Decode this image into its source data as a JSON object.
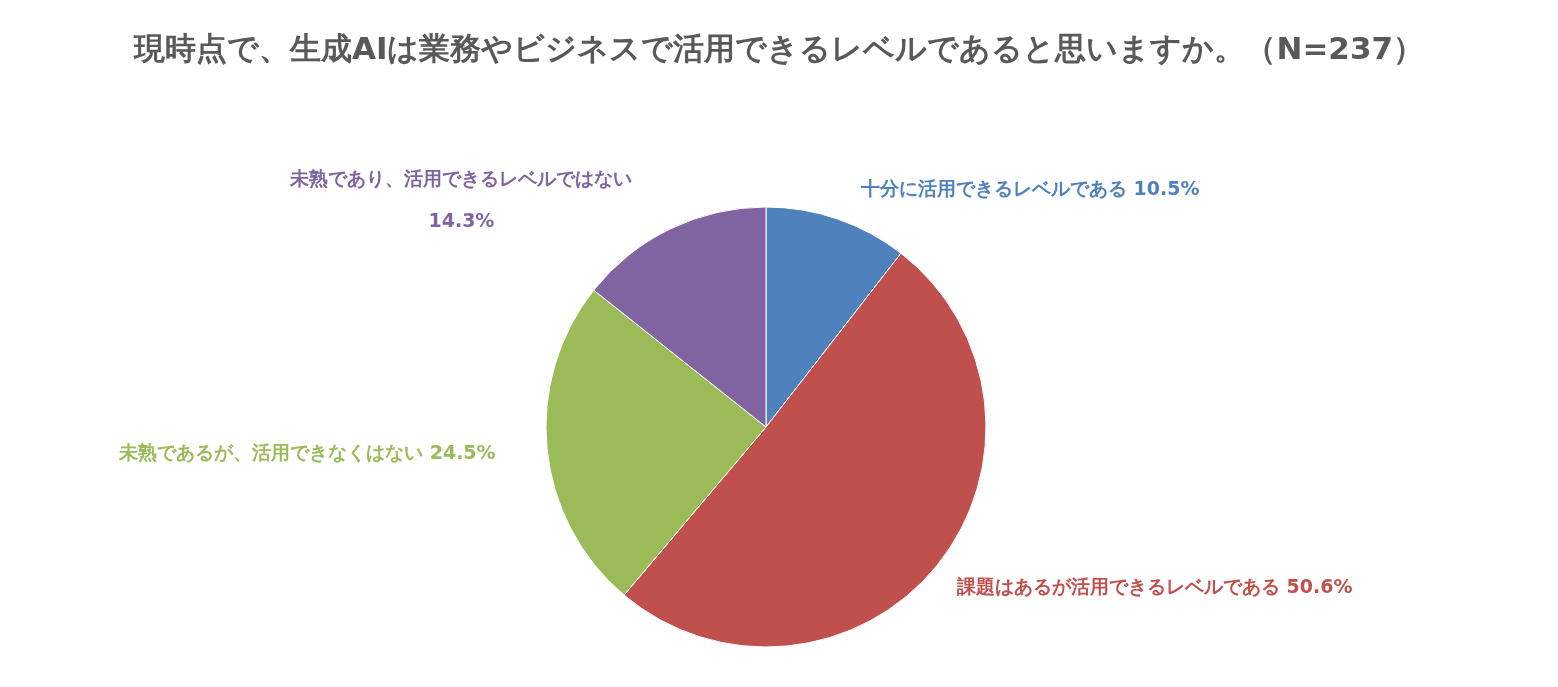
{
  "chart_data": {
    "type": "pie",
    "title": "現時点で、生成AIは業務やビジネスで活用できるレベルであると思いますか。（N=237）",
    "categories": [
      "十分に活用できるレベルである",
      "課題はあるが活用できるレベルである",
      "未熟であるが、活用できなくはない",
      "未熟であり、活用できるレベルではない"
    ],
    "values": [
      10.5,
      50.6,
      24.5,
      14.3
    ],
    "colors": [
      "#4f81bd",
      "#c0504d",
      "#9bbb59",
      "#8064a2"
    ],
    "value_labels": [
      "10.5%",
      "50.6%",
      "24.5%",
      "14.3%"
    ]
  }
}
